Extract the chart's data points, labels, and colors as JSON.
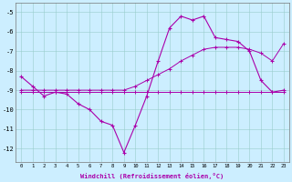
{
  "xlabel": "Windchill (Refroidissement éolien,°C)",
  "xlim": [
    -0.5,
    23.5
  ],
  "ylim": [
    -12.7,
    -4.5
  ],
  "yticks": [
    -12,
    -11,
    -10,
    -9,
    -8,
    -7,
    -6,
    -5
  ],
  "xticks": [
    0,
    1,
    2,
    3,
    4,
    5,
    6,
    7,
    8,
    9,
    10,
    11,
    12,
    13,
    14,
    15,
    16,
    17,
    18,
    19,
    20,
    21,
    22,
    23
  ],
  "bg_color": "#cceeff",
  "line_color": "#aa00aa",
  "hours": [
    0,
    1,
    2,
    3,
    4,
    5,
    6,
    7,
    8,
    9,
    10,
    11,
    12,
    13,
    14,
    15,
    16,
    17,
    18,
    19,
    20,
    21,
    22,
    23
  ],
  "windchill": [
    -8.3,
    -8.8,
    -9.3,
    -9.1,
    -9.2,
    -9.7,
    -10.0,
    -10.6,
    -10.8,
    -12.2,
    -10.8,
    -9.3,
    -7.5,
    -5.8,
    -5.2,
    -5.4,
    -5.2,
    -6.3,
    -6.4,
    -6.5,
    -7.0,
    -8.5,
    -9.1,
    -9.0
  ],
  "diagonal": [
    -9.0,
    -9.0,
    -9.0,
    -9.0,
    -9.0,
    -9.0,
    -9.0,
    -9.0,
    -9.0,
    -9.0,
    -8.8,
    -8.5,
    -8.2,
    -7.9,
    -7.5,
    -7.2,
    -6.9,
    -6.8,
    -6.8,
    -6.8,
    -6.9,
    -7.1,
    -7.5,
    -6.6
  ],
  "flat": [
    -9.1,
    -9.1,
    -9.1,
    -9.1,
    -9.1,
    -9.1,
    -9.1,
    -9.1,
    -9.1,
    -9.1,
    -9.1,
    -9.1,
    -9.1,
    -9.1,
    -9.1,
    -9.1,
    -9.1,
    -9.1,
    -9.1,
    -9.1,
    -9.1,
    -9.1,
    -9.1,
    -9.1
  ]
}
